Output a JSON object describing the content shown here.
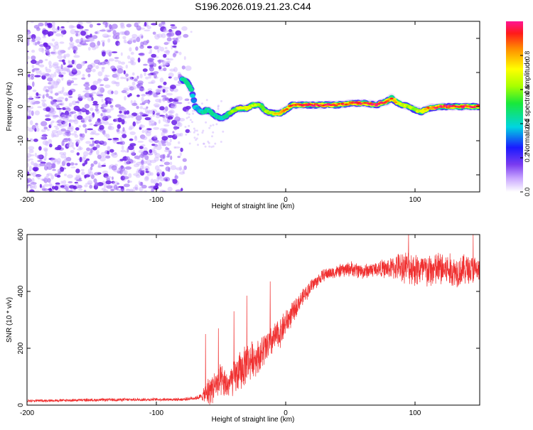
{
  "title": "S196.2026.019.21.23.C44",
  "colors": {
    "signal": "#f03030",
    "noise": "#7a3cf0",
    "axis": "#000000"
  },
  "chart_data": [
    {
      "type": "heatmap",
      "name": "spectrogram",
      "title": "S196.2026.019.21.23.C44",
      "xlabel": "Height of straight line (km)",
      "ylabel": "Frequency (Hz)",
      "xlim": [
        -200,
        150
      ],
      "ylim": [
        -25,
        25
      ],
      "xticks": [
        -200,
        -100,
        0,
        100
      ],
      "yticks": [
        20,
        10,
        0,
        -10,
        -20
      ],
      "xtick_labels": [
        "-200",
        "-100",
        "0",
        "100"
      ],
      "ytick_labels": [
        "20",
        "10",
        "0",
        "-10",
        "-20"
      ],
      "noise_region_x": [
        -200,
        -78
      ],
      "ridge": {
        "x": [
          -80,
          -76,
          -73,
          -70,
          -65,
          -60,
          -55,
          -50,
          -45,
          -40,
          -35,
          -30,
          -25,
          -20,
          -15,
          -10,
          -5,
          0,
          5,
          10,
          20,
          30,
          40,
          50,
          60,
          70,
          78,
          82,
          85,
          90,
          95,
          100,
          105,
          110,
          120,
          130,
          140,
          150
        ],
        "freq": [
          8,
          7,
          5,
          0,
          -1.5,
          -1,
          -2.5,
          -3.5,
          -2.5,
          -1,
          -0.5,
          -0.5,
          0.5,
          0.5,
          -1.5,
          -2,
          -2,
          -1,
          0.5,
          0.5,
          0.5,
          0.5,
          0.5,
          1,
          1,
          0.5,
          1.5,
          2.5,
          1.5,
          0.5,
          0,
          -1,
          -1.5,
          -0.5,
          0,
          0,
          0,
          0
        ],
        "amplitude": [
          0.45,
          0.5,
          0.4,
          0.35,
          0.4,
          0.45,
          0.45,
          0.4,
          0.5,
          0.6,
          0.7,
          0.75,
          0.65,
          0.55,
          0.6,
          0.7,
          0.75,
          0.8,
          0.85,
          0.9,
          0.95,
          0.95,
          0.9,
          0.9,
          0.95,
          0.95,
          0.9,
          0.85,
          0.75,
          0.7,
          0.65,
          0.6,
          0.7,
          0.85,
          0.95,
          0.95,
          0.95,
          0.95
        ]
      },
      "colorbar": {
        "label": "Normalized spectral amplitude",
        "ticks": [
          0.0,
          0.2,
          0.4,
          0.6,
          0.8
        ],
        "tick_labels": [
          "0.0",
          "0.2",
          "0.4",
          "0.6",
          "0.8"
        ],
        "range": [
          0,
          1
        ]
      }
    },
    {
      "type": "line",
      "name": "snr",
      "xlabel": "Height of straight line (km)",
      "ylabel": "SNR (10 * v/v)",
      "xlim": [
        -200,
        150
      ],
      "ylim": [
        0,
        600
      ],
      "xticks": [
        -200,
        -100,
        0,
        100
      ],
      "yticks": [
        0,
        200,
        400,
        600
      ],
      "xtick_labels": [
        "-200",
        "-100",
        "0",
        "100"
      ],
      "ytick_labels": [
        "0",
        "200",
        "400",
        "600"
      ],
      "envelope": {
        "x": [
          -200,
          -150,
          -100,
          -80,
          -70,
          -65,
          -60,
          -55,
          -50,
          -45,
          -40,
          -35,
          -30,
          -25,
          -20,
          -15,
          -10,
          -5,
          0,
          5,
          10,
          15,
          20,
          25,
          30,
          40,
          50,
          60,
          70,
          80,
          90,
          100,
          110,
          120,
          130,
          140,
          150
        ],
        "baseline": [
          15,
          18,
          20,
          20,
          25,
          30,
          45,
          70,
          80,
          70,
          95,
          120,
          150,
          165,
          175,
          200,
          230,
          250,
          290,
          320,
          360,
          390,
          420,
          440,
          460,
          470,
          480,
          470,
          480,
          480,
          490,
          480,
          470,
          480,
          470,
          480,
          470
        ],
        "spread": [
          5,
          6,
          6,
          6,
          8,
          12,
          60,
          60,
          70,
          55,
          70,
          80,
          80,
          70,
          70,
          70,
          60,
          60,
          55,
          45,
          35,
          30,
          30,
          25,
          25,
          25,
          30,
          30,
          30,
          40,
          60,
          70,
          70,
          70,
          65,
          60,
          55
        ]
      },
      "peaks": [
        {
          "x": -62,
          "y": 250
        },
        {
          "x": -52,
          "y": 270
        },
        {
          "x": -40,
          "y": 330
        },
        {
          "x": -30,
          "y": 385
        },
        {
          "x": -12,
          "y": 435
        },
        {
          "x": 95,
          "y": 600
        },
        {
          "x": 145,
          "y": 600
        }
      ]
    }
  ]
}
